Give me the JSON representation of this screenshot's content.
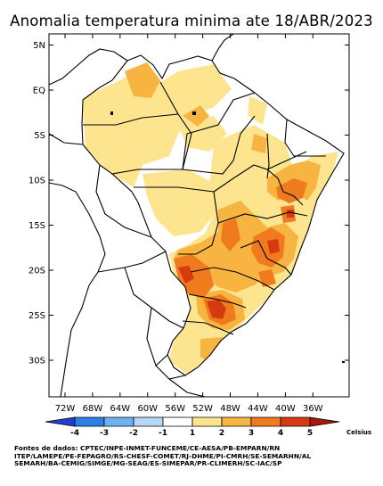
{
  "title": "Anomalia temperatura minima ate 18/ABR/2023",
  "lat_ticks": [
    {
      "label": "5N",
      "lat": 5
    },
    {
      "label": "EQ",
      "lat": 0
    },
    {
      "label": "5S",
      "lat": -5
    },
    {
      "label": "10S",
      "lat": -10
    },
    {
      "label": "15S",
      "lat": -15
    },
    {
      "label": "20S",
      "lat": -20
    },
    {
      "label": "25S",
      "lat": -25
    },
    {
      "label": "30S",
      "lat": -30
    }
  ],
  "lon_ticks": [
    {
      "label": "72W",
      "lon": -72
    },
    {
      "label": "68W",
      "lon": -68
    },
    {
      "label": "64W",
      "lon": -64
    },
    {
      "label": "60W",
      "lon": -60
    },
    {
      "label": "56W",
      "lon": -56
    },
    {
      "label": "52W",
      "lon": -52
    },
    {
      "label": "48W",
      "lon": -48
    },
    {
      "label": "44W",
      "lon": -44
    },
    {
      "label": "40W",
      "lon": -40
    },
    {
      "label": "36W",
      "lon": -36
    }
  ],
  "colorbar": {
    "unit": "Celsius",
    "labels": [
      "-4",
      "-3",
      "-2",
      "-1",
      "1",
      "2",
      "3",
      "4",
      "5"
    ],
    "colors": [
      "#1f3fd0",
      "#2d7ee6",
      "#6fb1ef",
      "#b5d8f6",
      "#ffffff",
      "#fde58f",
      "#f8b440",
      "#f07a1e",
      "#d63a10",
      "#a81808"
    ]
  },
  "sources": {
    "line1": "Fontes de dados: CPTEC/INPE-INMET-FUNCEME/CE-AESA/PB-EMPARN/RN",
    "line2": "ITEP/LAMEPE/PE-FEPAGRO/RS-CHESF-COMET/RJ-DHME/PI-CMRH/SE-SEMARHN/AL",
    "line3": "SEMARH/BA-CEMIG/SIMGE/MG-SEAG/ES-SIMEPAR/PR-CLIMERH/SC-IAC/SP"
  }
}
